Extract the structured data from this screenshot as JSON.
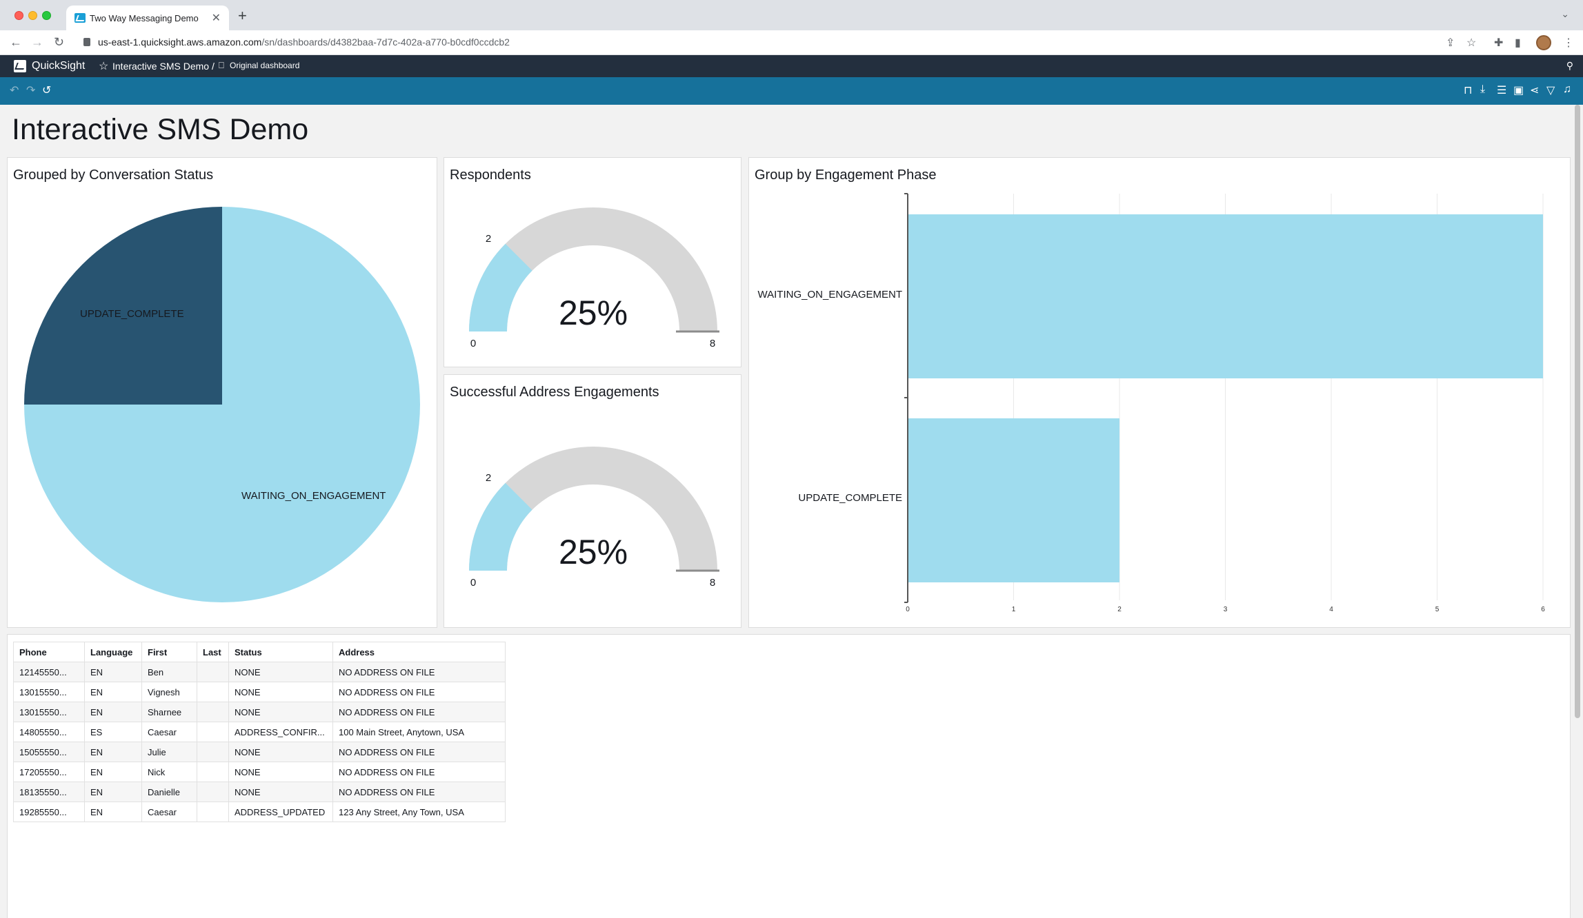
{
  "browser": {
    "tab_title": "Two Way Messaging Demo",
    "tab_close": "✕",
    "new_tab": "+",
    "tab_menu": "⌄",
    "url_host": "us-east-1.quicksight.aws.amazon.com",
    "url_path": "/sn/dashboards/d4382baa-7d7c-402a-a770-b0cdf0ccdcb2",
    "nav": {
      "back": "←",
      "forward": "→",
      "reload": "↻"
    },
    "icons": [
      "share-icon",
      "star-icon",
      "extensions-icon",
      "sidebar-icon",
      "menu-icon"
    ]
  },
  "quicksight": {
    "brand": "QuickSight",
    "breadcrumb": "Interactive SMS Demo /",
    "original_label": "Original dashboard"
  },
  "toolbar": {
    "left_icons": [
      "undo-icon",
      "redo-icon",
      "reset-icon"
    ],
    "right_icons": [
      "bookmark-icon",
      "download-icon",
      "database-icon",
      "save-icon",
      "share-icon",
      "filter-icon",
      "alert-icon"
    ]
  },
  "dashboard": {
    "title": "Interactive SMS Demo",
    "pie": {
      "title": "Grouped by Conversation Status",
      "labels": {
        "update_complete": "UPDATE_COMPLETE",
        "waiting": "WAITING_ON_ENGAGEMENT"
      }
    },
    "respondents": {
      "title": "Respondents",
      "value": "2",
      "percent": "25%",
      "min": "0",
      "max": "8"
    },
    "address": {
      "title": "Successful Address Engagements",
      "value": "2",
      "percent": "25%",
      "min": "0",
      "max": "8"
    },
    "bar": {
      "title": "Group by Engagement Phase",
      "categories": [
        "WAITING_ON_ENGAGEMENT",
        "UPDATE_COMPLETE"
      ],
      "ticks": [
        "0",
        "1",
        "2",
        "3",
        "4",
        "5",
        "6"
      ]
    },
    "table": {
      "headers": [
        "Phone",
        "Language",
        "First",
        "Last",
        "Status",
        "Address"
      ],
      "rows": [
        [
          "12145550...",
          "EN",
          "Ben",
          "",
          "NONE",
          "NO ADDRESS ON FILE"
        ],
        [
          "13015550...",
          "EN",
          "Vignesh",
          "",
          "NONE",
          "NO ADDRESS ON FILE"
        ],
        [
          "13015550...",
          "EN",
          "Sharnee",
          "",
          "NONE",
          "NO ADDRESS ON FILE"
        ],
        [
          "14805550...",
          "ES",
          "Caesar",
          "",
          "ADDRESS_CONFIR...",
          "100 Main Street, Anytown, USA"
        ],
        [
          "15055550...",
          "EN",
          "Julie",
          "",
          "NONE",
          "NO ADDRESS ON FILE"
        ],
        [
          "17205550...",
          "EN",
          "Nick",
          "",
          "NONE",
          "NO ADDRESS ON FILE"
        ],
        [
          "18135550...",
          "EN",
          "Danielle",
          "",
          "NONE",
          "NO ADDRESS ON FILE"
        ],
        [
          "19285550...",
          "EN",
          "Caesar",
          "",
          "ADDRESS_UPDATED",
          "123 Any Street, Any Town, USA"
        ]
      ]
    }
  },
  "colors": {
    "light_blue": "#9fdcee",
    "dark_blue": "#285471",
    "gauge_gray": "#d7d7d7",
    "teal_toolbar": "#16719b"
  },
  "chart_data": [
    {
      "type": "pie",
      "title": "Grouped by Conversation Status",
      "categories": [
        "UPDATE_COMPLETE",
        "WAITING_ON_ENGAGEMENT"
      ],
      "values": [
        2,
        6
      ]
    },
    {
      "type": "gauge",
      "title": "Respondents",
      "value": 2,
      "min": 0,
      "max": 8,
      "percent_label": "25%"
    },
    {
      "type": "gauge",
      "title": "Successful Address Engagements",
      "value": 2,
      "min": 0,
      "max": 8,
      "percent_label": "25%"
    },
    {
      "type": "bar",
      "orientation": "horizontal",
      "title": "Group by Engagement Phase",
      "categories": [
        "WAITING_ON_ENGAGEMENT",
        "UPDATE_COMPLETE"
      ],
      "values": [
        6,
        2
      ],
      "xlim": [
        0,
        6
      ],
      "grid": true
    }
  ]
}
